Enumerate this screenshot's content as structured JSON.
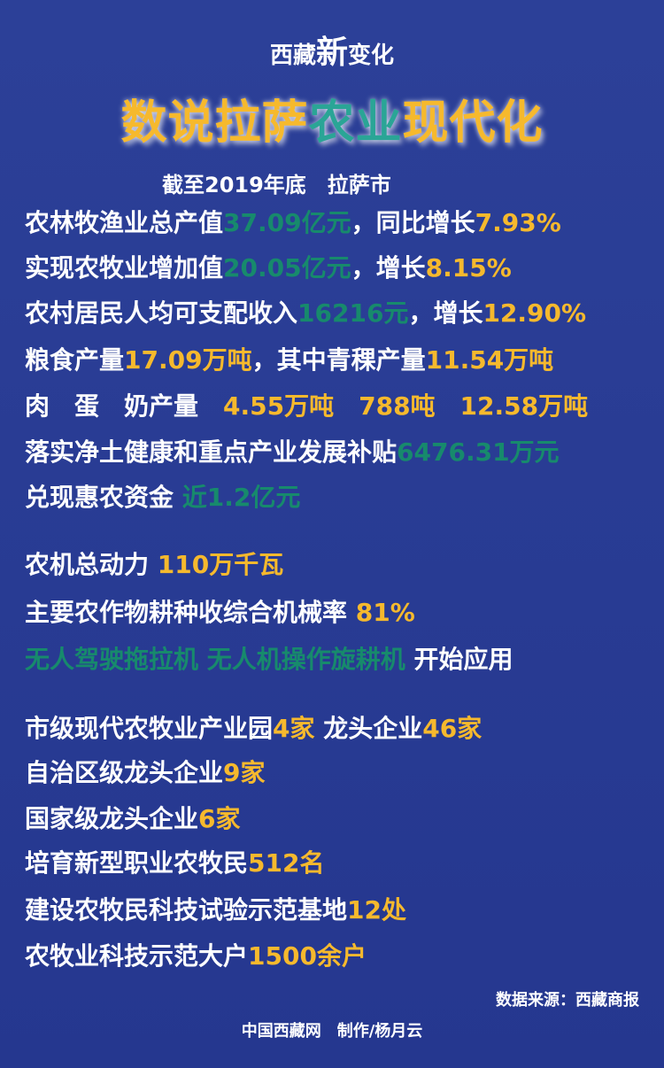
{
  "colors": {
    "background": "#2b3f97",
    "yellow": "#f6b92d",
    "green": "#178a6c",
    "title_green": "#2aa596",
    "white": "#ffffff"
  },
  "brand": {
    "part1": "西藏",
    "part2": "新",
    "part3": "变化"
  },
  "title": {
    "part1": "数说拉萨",
    "part2": "农业",
    "part3": "现代化"
  },
  "subtitle": "截至2019年底　拉萨市",
  "lines": [
    {
      "segments": [
        {
          "text": "农林牧渔业总产值",
          "c": "w"
        },
        {
          "text": "37.09亿元",
          "c": "g"
        },
        {
          "text": "，同比增长",
          "c": "w"
        },
        {
          "text": "7.93%",
          "c": "y"
        }
      ]
    },
    {
      "segments": [
        {
          "text": "实现农牧业增加值",
          "c": "w"
        },
        {
          "text": "20.05亿元",
          "c": "g"
        },
        {
          "text": "，增长",
          "c": "w"
        },
        {
          "text": "8.15%",
          "c": "y"
        }
      ]
    },
    {
      "segments": [
        {
          "text": "农村居民人均可支配收入",
          "c": "w"
        },
        {
          "text": "16216元",
          "c": "g"
        },
        {
          "text": "，增长",
          "c": "w"
        },
        {
          "text": "12.90%",
          "c": "y"
        }
      ]
    },
    {
      "segments": [
        {
          "text": "粮食产量",
          "c": "w"
        },
        {
          "text": "17.09万吨",
          "c": "y"
        },
        {
          "text": "，其中青稞产量",
          "c": "w"
        },
        {
          "text": "11.54万吨",
          "c": "y"
        }
      ]
    },
    {
      "segments": [
        {
          "text": "肉　蛋　奶产量　",
          "c": "w"
        },
        {
          "text": "4.55万吨　788吨　12.58万吨",
          "c": "y"
        }
      ]
    },
    {
      "segments": [
        {
          "text": "落实净土健康和重点产业发展补贴",
          "c": "w"
        },
        {
          "text": "6476.31万元",
          "c": "g"
        }
      ]
    },
    {
      "segments": [
        {
          "text": "兑现惠农资金 ",
          "c": "w"
        },
        {
          "text": "近1.2亿元",
          "c": "g"
        }
      ]
    },
    {
      "segments": [
        {
          "text": "农机总动力 ",
          "c": "w"
        },
        {
          "text": "110万千瓦",
          "c": "y"
        }
      ]
    },
    {
      "segments": [
        {
          "text": "主要农作物耕种收综合机械率 ",
          "c": "w"
        },
        {
          "text": "81%",
          "c": "y"
        }
      ]
    },
    {
      "segments": [
        {
          "text": "无人驾驶拖拉机 无人机操作旋耕机 ",
          "c": "g"
        },
        {
          "text": "开始应用",
          "c": "w"
        }
      ]
    },
    {
      "segments": [
        {
          "text": "市级现代农牧业产业园",
          "c": "w"
        },
        {
          "text": "4家",
          "c": "y"
        },
        {
          "text": " 龙头企业",
          "c": "w"
        },
        {
          "text": "46家",
          "c": "y"
        }
      ]
    },
    {
      "segments": [
        {
          "text": "自治区级龙头企业",
          "c": "w"
        },
        {
          "text": "9家",
          "c": "y"
        }
      ]
    },
    {
      "segments": [
        {
          "text": "国家级龙头企业",
          "c": "w"
        },
        {
          "text": "6家",
          "c": "y"
        }
      ]
    },
    {
      "segments": [
        {
          "text": "培育新型职业农牧民",
          "c": "w"
        },
        {
          "text": "512名",
          "c": "y"
        }
      ]
    },
    {
      "segments": [
        {
          "text": "建设农牧民科技试验示范基地",
          "c": "w"
        },
        {
          "text": "12处",
          "c": "y"
        }
      ]
    },
    {
      "segments": [
        {
          "text": "农牧业科技示范大户",
          "c": "w"
        },
        {
          "text": "1500余户",
          "c": "y"
        }
      ]
    }
  ],
  "source": "数据来源：西藏商报",
  "credit": "中国西藏网　制作/杨月云"
}
